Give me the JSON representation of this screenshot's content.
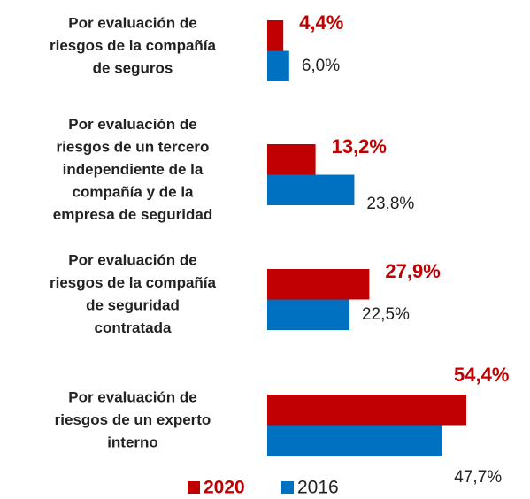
{
  "chart_data": {
    "type": "bar",
    "orientation": "horizontal",
    "categories": [
      [
        "Por evaluación de",
        "riesgos de la compañía",
        "de seguros"
      ],
      [
        "Por evaluación de",
        "riesgos de un tercero",
        "independiente de la",
        "compañía y de la",
        "empresa de seguridad"
      ],
      [
        "Por evaluación de",
        "riesgos de la compañía",
        "de seguridad",
        "contratada"
      ],
      [
        "Por evaluación de",
        "riesgos de un experto",
        "interno"
      ]
    ],
    "series": [
      {
        "name": "2020",
        "color": "#c00000",
        "values": [
          4.4,
          13.2,
          27.9,
          54.4
        ],
        "value_labels": [
          "4,4%",
          "13,2%",
          "27,9%",
          "54,4%"
        ]
      },
      {
        "name": "2016",
        "color": "#0070c0",
        "values": [
          6.0,
          23.8,
          22.5,
          47.7
        ],
        "value_labels": [
          "6,0%",
          "23,8%",
          "22,5%",
          "47,7%"
        ]
      }
    ],
    "legend": "bottom"
  }
}
